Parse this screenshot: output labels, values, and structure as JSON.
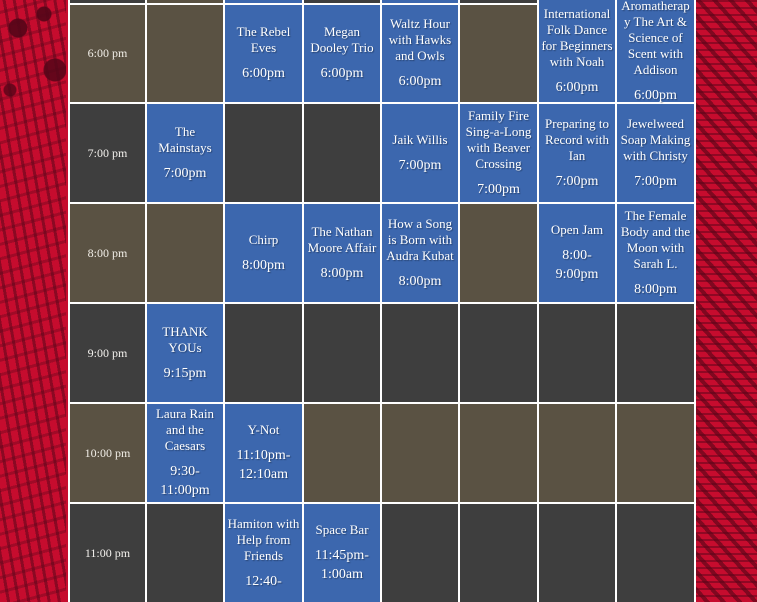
{
  "colors": {
    "event_blue": "#3c67ae",
    "slot_dark_gray": "#3e3e3e",
    "slot_olive": "#5a5243",
    "background_red": "#c60c2e",
    "gridline_white": "#ffffff"
  },
  "schedule": {
    "rows": [
      {
        "time": "6:00 pm",
        "events": {
          "c3": {
            "title": "The Rebel Eves",
            "time": "6:00pm"
          },
          "c4": {
            "title": "Megan Dooley Trio",
            "time": "6:00pm"
          },
          "c5": {
            "title": "Waltz Hour with Hawks and Owls",
            "time": "6:00pm"
          },
          "c7": {
            "title": "International Folk Dance for Beginners with Noah",
            "time": "6:00pm"
          },
          "c8": {
            "title": "Aromatherapy The Art & Science of Scent with Addison",
            "time": "6:00pm"
          }
        }
      },
      {
        "time": "7:00 pm",
        "events": {
          "c2": {
            "title": "The Mainstays",
            "time": "7:00pm"
          },
          "c5": {
            "title": "Jaik Willis",
            "time": "7:00pm"
          },
          "c6": {
            "title": "Family Fire Sing-a-Long with Beaver Crossing",
            "time": "7:00pm"
          },
          "c7": {
            "title": "Preparing to Record with Ian",
            "time": "7:00pm"
          },
          "c8": {
            "title": "Jewelweed Soap Making with Christy",
            "time": "7:00pm"
          }
        }
      },
      {
        "time": "8:00 pm",
        "events": {
          "c3": {
            "title": "Chirp",
            "time": "8:00pm"
          },
          "c4": {
            "title": "The Nathan Moore Affair",
            "time": "8:00pm"
          },
          "c5": {
            "title": "How a Song is Born with Audra Kubat",
            "time": "8:00pm"
          },
          "c7": {
            "title": "Open Jam",
            "time": "8:00- 9:00pm"
          },
          "c8": {
            "title": "The Female Body and the Moon with Sarah L.",
            "time": "8:00pm"
          }
        }
      },
      {
        "time": "9:00 pm",
        "events": {
          "c2": {
            "title": "THANK YOUs",
            "time": "9:15pm"
          }
        }
      },
      {
        "time": "10:00 pm",
        "events": {
          "c2": {
            "title": "Laura Rain and the Caesars",
            "time": "9:30- 11:00pm"
          },
          "c3": {
            "title": "Y-Not",
            "time": "11:10pm- 12:10am"
          }
        }
      },
      {
        "time": "11:00 pm",
        "events": {
          "c3": {
            "title": "Hamiton with Help from Friends",
            "time": "12:40-"
          },
          "c4": {
            "title": "Space Bar",
            "time": "11:45pm- 1:00am"
          }
        }
      }
    ]
  }
}
